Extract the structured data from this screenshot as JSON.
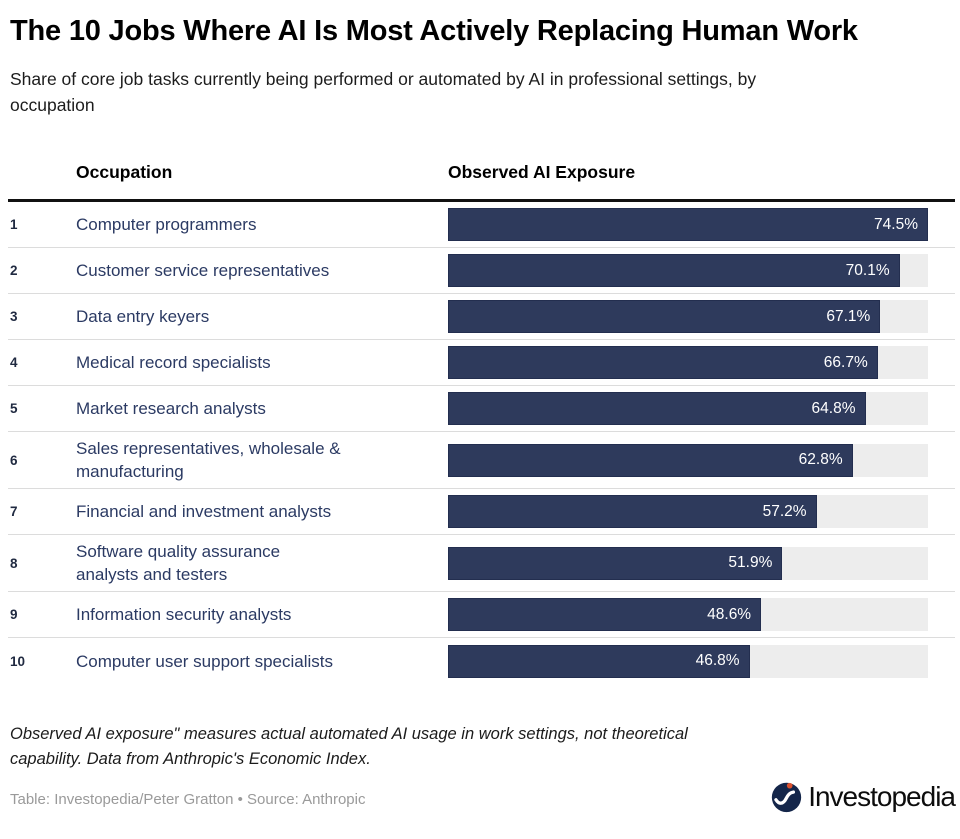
{
  "title": "The 10 Jobs Where AI Is Most Actively Replacing Human Work",
  "subtitle": "Share of core job tasks currently being performed or automated by AI in professional settings, by\noccupation",
  "table": {
    "columns": {
      "occupation": "Occupation",
      "exposure": "Observed AI Exposure"
    },
    "rows": [
      {
        "rank": "1",
        "occupation": "Computer programmers",
        "value": 74.5,
        "label": "74.5%"
      },
      {
        "rank": "2",
        "occupation": "Customer service representatives",
        "value": 70.1,
        "label": "70.1%"
      },
      {
        "rank": "3",
        "occupation": "Data entry keyers",
        "value": 67.1,
        "label": "67.1%"
      },
      {
        "rank": "4",
        "occupation": "Medical record specialists",
        "value": 66.7,
        "label": "66.7%"
      },
      {
        "rank": "5",
        "occupation": "Market research analysts",
        "value": 64.8,
        "label": "64.8%"
      },
      {
        "rank": "6",
        "occupation": "Sales representatives, wholesale &\nmanufacturing",
        "value": 62.8,
        "label": "62.8%"
      },
      {
        "rank": "7",
        "occupation": "Financial and investment analysts",
        "value": 57.2,
        "label": "57.2%"
      },
      {
        "rank": "8",
        "occupation": "Software quality assurance\nanalysts and testers",
        "value": 51.9,
        "label": "51.9%"
      },
      {
        "rank": "9",
        "occupation": "Information security analysts",
        "value": 48.6,
        "label": "48.6%"
      },
      {
        "rank": "10",
        "occupation": "Computer user support specialists",
        "value": 46.8,
        "label": "46.8%"
      }
    ]
  },
  "chart_data": {
    "type": "bar",
    "orientation": "horizontal",
    "title": "The 10 Jobs Where AI Is Most Actively Replacing Human Work",
    "subtitle": "Share of core job tasks currently being performed or automated by AI in professional settings, by occupation",
    "value_column_header": "Observed AI Exposure",
    "categories": [
      "Computer programmers",
      "Customer service representatives",
      "Data entry keyers",
      "Medical record specialists",
      "Market research analysts",
      "Sales representatives, wholesale & manufacturing",
      "Financial and investment analysts",
      "Software quality assurance analysts and testers",
      "Information security analysts",
      "Computer user support specialists"
    ],
    "values": [
      74.5,
      70.1,
      67.1,
      66.7,
      64.8,
      62.8,
      57.2,
      51.9,
      48.6,
      46.8
    ],
    "value_labels": [
      "74.5%",
      "70.1%",
      "67.1%",
      "66.7%",
      "64.8%",
      "62.8%",
      "57.2%",
      "51.9%",
      "48.6%",
      "46.8%"
    ],
    "scale_max": 74.5,
    "grid": false,
    "legend": false
  },
  "footnote": "Observed AI exposure\" measures actual automated AI usage in work settings, not theoretical\ncapability. Data from Anthropic's Economic Index.",
  "credit": "Table: Investopedia/Peter Gratton • Source: Anthropic",
  "logo": {
    "wordmark": "Investopedia"
  },
  "colors": {
    "bar": "#2e3a5c",
    "bar_border": "#232e4f",
    "track": "#ededed",
    "occupation_text": "#2b3a63",
    "logo_navy": "#14264a",
    "logo_orange": "#da512e",
    "header_rule": "#111111"
  }
}
